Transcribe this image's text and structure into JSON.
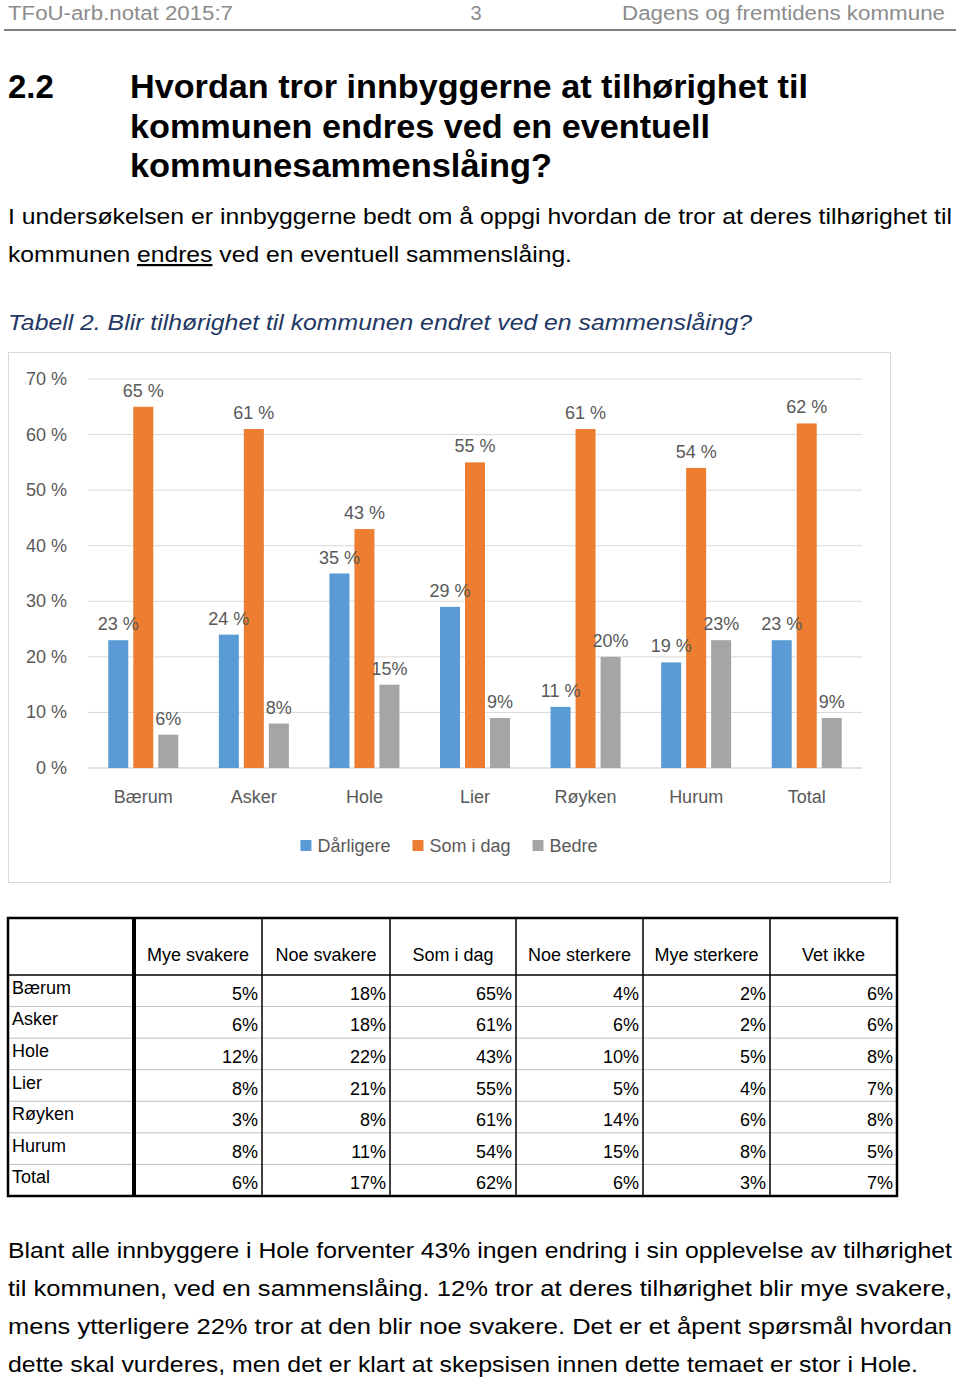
{
  "header": {
    "left": "TFoU-arb.notat 2015:7",
    "page": "3",
    "right": "Dagens og fremtidens kommune"
  },
  "heading": {
    "number": "2.2",
    "lines": [
      "Hvordan tror innbyggerne at tilhørighet til",
      "kommunen endres ved en eventuell",
      "kommunesammenslåing?"
    ]
  },
  "intro": {
    "lines": [
      [
        {
          "text": "I undersøkelsen er innbyggerne bedt om å oppgi hvordan de tror at deres tilhørighet til"
        }
      ],
      [
        {
          "text": "kommunen "
        },
        {
          "text": "endres",
          "underline": true
        },
        {
          "text": " ved en eventuell sammenslåing."
        }
      ]
    ]
  },
  "caption": "Tabell 2. Blir tilhørighet til kommunen endret ved en sammenslåing?",
  "chart_data": {
    "type": "bar",
    "categories": [
      "Bærum",
      "Asker",
      "Hole",
      "Lier",
      "Røyken",
      "Hurum",
      "Total"
    ],
    "series": [
      {
        "name": "Dårligere",
        "color": "#5b9bd5",
        "values": [
          23,
          24,
          35,
          29,
          11,
          19,
          23
        ],
        "value_labels": [
          "23 %",
          "24 %",
          "35 %",
          "29 %",
          "11 %",
          "19 %",
          "23 %"
        ]
      },
      {
        "name": "Som i dag",
        "color": "#ed7d31",
        "values": [
          65,
          61,
          43,
          55,
          61,
          54,
          62
        ],
        "value_labels": [
          "65 %",
          "61 %",
          "43 %",
          "55 %",
          "61 %",
          "54 %",
          "62 %"
        ]
      },
      {
        "name": "Bedre",
        "color": "#a5a5a5",
        "values": [
          6,
          8,
          15,
          9,
          20,
          23,
          9
        ],
        "value_labels": [
          "6%",
          "8%",
          "15%",
          "9%",
          "20%",
          "23%",
          "9%"
        ]
      }
    ],
    "ylim": [
      0,
      70
    ],
    "yticks": [
      {
        "value": 0,
        "label": "0 %"
      },
      {
        "value": 10,
        "label": "10 %"
      },
      {
        "value": 20,
        "label": "20 %"
      },
      {
        "value": 30,
        "label": "30 %"
      },
      {
        "value": 40,
        "label": "40 %"
      },
      {
        "value": 50,
        "label": "50 %"
      },
      {
        "value": 60,
        "label": "60 %"
      },
      {
        "value": 70,
        "label": "70 %"
      }
    ],
    "grid": true,
    "legend": "bottom",
    "data_labels": true
  },
  "table": {
    "columns": [
      "Mye svakere",
      "Noe svakere",
      "Som i dag",
      "Noe sterkere",
      "Mye sterkere",
      "Vet ikke"
    ],
    "rows": [
      {
        "label": "Bærum",
        "cells": [
          "5%",
          "18%",
          "65%",
          "4%",
          "2%",
          "6%"
        ]
      },
      {
        "label": "Asker",
        "cells": [
          "6%",
          "18%",
          "61%",
          "6%",
          "2%",
          "6%"
        ]
      },
      {
        "label": "Hole",
        "cells": [
          "12%",
          "22%",
          "43%",
          "10%",
          "5%",
          "8%"
        ]
      },
      {
        "label": "Lier",
        "cells": [
          "8%",
          "21%",
          "55%",
          "5%",
          "4%",
          "7%"
        ]
      },
      {
        "label": "Røyken",
        "cells": [
          "3%",
          "8%",
          "61%",
          "14%",
          "6%",
          "8%"
        ]
      },
      {
        "label": "Hurum",
        "cells": [
          "8%",
          "11%",
          "54%",
          "15%",
          "8%",
          "5%"
        ]
      },
      {
        "label": "Total",
        "cells": [
          "6%",
          "17%",
          "62%",
          "6%",
          "3%",
          "7%"
        ]
      }
    ]
  },
  "closing": {
    "lines": [
      "Blant alle innbyggere i Hole forventer 43% ingen endring i sin opplevelse av tilhørighet",
      "til kommunen, ved en sammenslåing. 12% tror at deres tilhørighet blir mye svakere,",
      "mens ytterligere 22% tror at den blir noe svakere. Det er et åpent spørsmål hvordan",
      "dette skal vurderes, men det er klart at skepsisen innen dette temaet er stor i Hole."
    ]
  }
}
